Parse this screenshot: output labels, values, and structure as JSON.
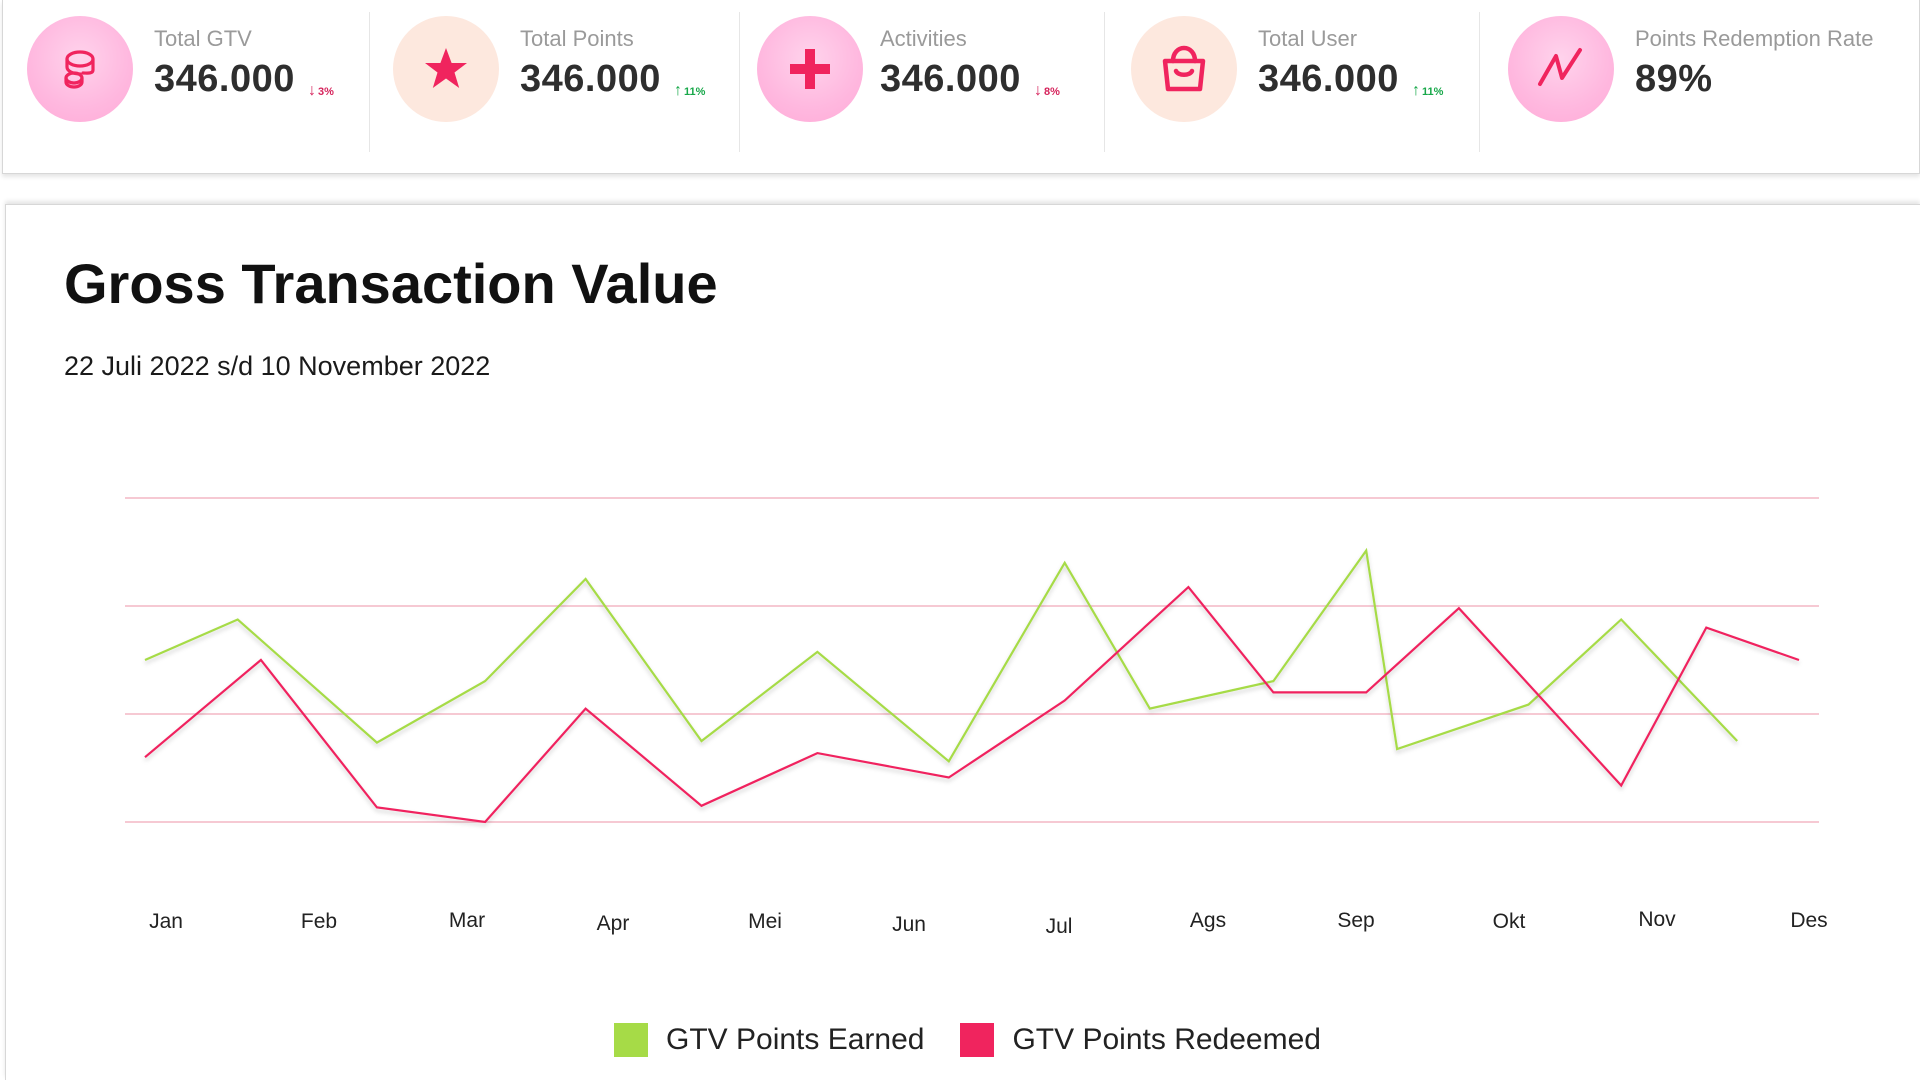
{
  "stats": [
    {
      "label": "Total GTV",
      "value": "346.000",
      "change": "3%",
      "direction": "down",
      "icon": "coins-icon",
      "icon_style": "pink"
    },
    {
      "label": "Total Points",
      "value": "346.000",
      "change": "11%",
      "direction": "up",
      "icon": "star-icon",
      "icon_style": "peach"
    },
    {
      "label": "Activities",
      "value": "346.000",
      "change": "8%",
      "direction": "down",
      "icon": "plus-icon",
      "icon_style": "pink"
    },
    {
      "label": "Total User",
      "value": "346.000",
      "change": "11%",
      "direction": "up",
      "icon": "shopping-bag-icon",
      "icon_style": "peach"
    },
    {
      "label": "Points Redemption Rate",
      "value": "89%",
      "change": "",
      "direction": "",
      "icon": "trend-line-icon",
      "icon_style": "pink"
    }
  ],
  "colors": {
    "accent": "#f0245e",
    "earned": "#a6db47",
    "redeemed": "#f0245e",
    "grid": "#f6c9d3",
    "down": "#d6245c",
    "up": "#18a84a"
  },
  "chart_data": {
    "type": "line",
    "title": "Gross Transaction Value",
    "subtitle": "22 Juli 2022 s/d 10 November 2022",
    "xlabel": "",
    "ylabel": "",
    "grid": true,
    "legend_position": "bottom",
    "categories": [
      "Jan",
      "Feb",
      "Mar",
      "Apr",
      "Mei",
      "Jun",
      "Jul",
      "Ags",
      "Sep",
      "Okt",
      "Nov",
      "Des"
    ],
    "ylim": [
      0,
      4
    ],
    "x": [
      0,
      0.6,
      1.5,
      2.2,
      2.85,
      3.6,
      4.35,
      5.2,
      5.95,
      6.5,
      7.3,
      7.9,
      8.1,
      8.95,
      9.55,
      10.3,
      10.7
    ],
    "series": [
      {
        "name": "GTV Points Earned",
        "color": "#a6db47",
        "values": [
          2.0,
          2.5,
          0.98,
          1.74,
          3.0,
          1.0,
          2.1,
          0.75,
          3.2,
          1.4,
          1.74,
          3.35,
          0.9,
          1.45,
          2.5,
          1.0,
          null
        ]
      },
      {
        "name": "GTV Points Redeemed",
        "color": "#f0245e",
        "values": [
          0.8,
          2.0,
          0.18,
          0.0,
          1.4,
          0.2,
          0.85,
          0.55,
          1.5,
          2.9,
          1.6,
          1.6,
          2.64,
          0.45,
          2.4,
          2.0,
          null
        ]
      }
    ],
    "x_redeemed": [
      0,
      0.75,
      1.5,
      2.2,
      2.85,
      3.6,
      4.35,
      5.2,
      5.95,
      6.75,
      7.3,
      7.9,
      8.5,
      9.55,
      10.1,
      10.7
    ]
  }
}
